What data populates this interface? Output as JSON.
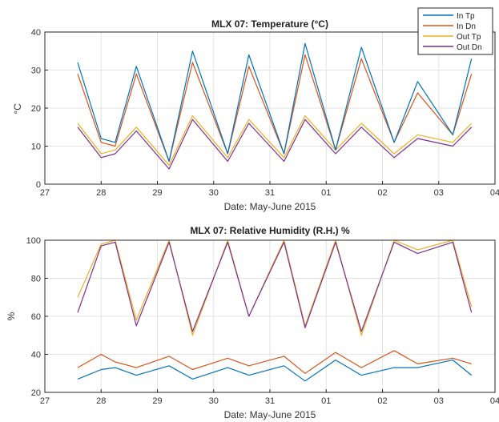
{
  "chart_data": [
    {
      "type": "line",
      "title": "MLX 07: Temperature (°C)",
      "xlabel": "Date: May-June 2015",
      "ylabel": "°C",
      "xticks": [
        "27",
        "28",
        "29",
        "30",
        "31",
        "01",
        "02",
        "03",
        "04"
      ],
      "yticks": [
        "0",
        "10",
        "20",
        "30",
        "40"
      ],
      "xlim": [
        "2015-05-27",
        "2015-06-04"
      ],
      "ylim": [
        0,
        40
      ],
      "grid": true,
      "legend": "top-right",
      "colors": [
        "#0072BD",
        "#D95319",
        "#EDB120",
        "#7E2F8E"
      ],
      "x": [
        "2015-05-27 14:00",
        "2015-05-28 00:00",
        "2015-05-28 06:00",
        "2015-05-28 15:00",
        "2015-05-29 05:00",
        "2015-05-29 15:00",
        "2015-05-30 06:00",
        "2015-05-30 15:00",
        "2015-05-31 06:00",
        "2015-05-31 15:00",
        "2015-06-01 04:00",
        "2015-06-01 15:00",
        "2015-06-02 05:00",
        "2015-06-02 15:00",
        "2015-06-03 06:00",
        "2015-06-03 14:00"
      ],
      "series": [
        {
          "name": "In Tp",
          "values": [
            32,
            12,
            11,
            31,
            6,
            35,
            8,
            34,
            8,
            37,
            9,
            36,
            11,
            27,
            13,
            33
          ]
        },
        {
          "name": "In Dn",
          "values": [
            29,
            11,
            10,
            29,
            6,
            32,
            8,
            31,
            8,
            34,
            9,
            33,
            11,
            24,
            13,
            29
          ]
        },
        {
          "name": "Out Tp",
          "values": [
            16,
            8,
            9,
            15,
            5,
            18,
            7,
            17,
            7,
            18,
            9,
            16,
            8,
            13,
            11,
            16
          ]
        },
        {
          "name": "Out Dn",
          "values": [
            15,
            7,
            8,
            14,
            4,
            17,
            6,
            16,
            6,
            17,
            8,
            15,
            7,
            12,
            10,
            15
          ]
        }
      ]
    },
    {
      "type": "line",
      "title": "MLX 07: Relative Humidity (R.H.) %",
      "xlabel": "Date: May-June 2015",
      "ylabel": "%",
      "xticks": [
        "27",
        "28",
        "29",
        "30",
        "31",
        "01",
        "02",
        "03",
        "04"
      ],
      "yticks": [
        "20",
        "40",
        "60",
        "80",
        "100"
      ],
      "xlim": [
        "2015-05-27",
        "2015-06-04"
      ],
      "ylim": [
        20,
        100
      ],
      "grid": true,
      "colors": [
        "#0072BD",
        "#D95319",
        "#EDB120",
        "#7E2F8E"
      ],
      "x": [
        "2015-05-27 14:00",
        "2015-05-28 00:00",
        "2015-05-28 06:00",
        "2015-05-28 15:00",
        "2015-05-29 05:00",
        "2015-05-29 15:00",
        "2015-05-30 06:00",
        "2015-05-30 15:00",
        "2015-05-31 06:00",
        "2015-05-31 15:00",
        "2015-06-01 04:00",
        "2015-06-01 15:00",
        "2015-06-02 05:00",
        "2015-06-02 15:00",
        "2015-06-03 06:00",
        "2015-06-03 14:00"
      ],
      "series": [
        {
          "name": "In Tp",
          "values": [
            27,
            32,
            33,
            29,
            34,
            27,
            33,
            29,
            34,
            26,
            37,
            29,
            33,
            33,
            37,
            29
          ]
        },
        {
          "name": "In Dn",
          "values": [
            33,
            40,
            36,
            33,
            39,
            32,
            38,
            34,
            39,
            30,
            41,
            33,
            42,
            35,
            38,
            35
          ]
        },
        {
          "name": "Out Tp",
          "values": [
            70,
            98,
            100,
            58,
            100,
            50,
            100,
            60,
            100,
            55,
            100,
            50,
            100,
            95,
            100,
            65
          ]
        },
        {
          "name": "Out Dn",
          "values": [
            62,
            97,
            99,
            55,
            99,
            52,
            99,
            60,
            99,
            54,
            99,
            52,
            99,
            93,
            99,
            62
          ]
        }
      ]
    }
  ]
}
